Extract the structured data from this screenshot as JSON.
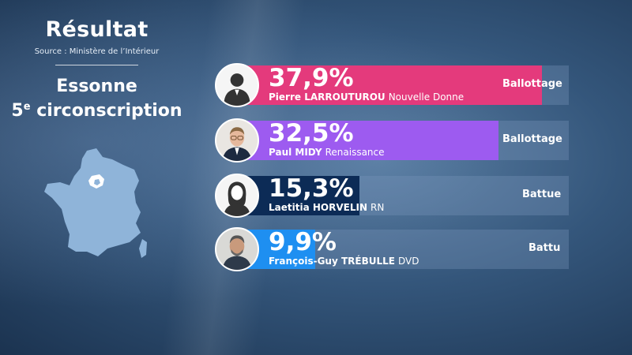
{
  "title": "Résultat",
  "source": "Source : Ministère de l’Intérieur",
  "department": "Essonne",
  "circonscription": {
    "number": "5",
    "suffix": "e",
    "label": "circonscription"
  },
  "colors": {
    "larrouturou": "#e43a7c",
    "midy": "#9d5bf0",
    "horvelin": "#0c2b56",
    "trebulle": "#1e8ff1",
    "map_land": "#8fb4d9",
    "map_highlight": "#ffffff"
  },
  "chart_data": {
    "type": "bar",
    "ylim": [
      0,
      37.9
    ],
    "candidates": [
      {
        "pct_label": "37,9%",
        "value": 37.9,
        "name": "Pierre LARROUTUROU",
        "party": "Nouvelle Donne",
        "status": "Ballottage",
        "color": "#e43a7c",
        "photo": "silhouette-man-icon"
      },
      {
        "pct_label": "32,5%",
        "value": 32.5,
        "name": "Paul MIDY",
        "party": "Renaissance",
        "status": "Ballottage",
        "color": "#9d5bf0",
        "photo": "candidate-photo-icon"
      },
      {
        "pct_label": "15,3%",
        "value": 15.3,
        "name": "Laetitia HORVELIN",
        "party": "RN",
        "status": "Battue",
        "color": "#0c2b56",
        "photo": "silhouette-woman-icon"
      },
      {
        "pct_label": "9,9%",
        "value": 9.9,
        "name": "François-Guy TRÉBULLE",
        "party": "DVD",
        "status": "Battu",
        "color": "#1e8ff1",
        "photo": "candidate-photo-icon"
      }
    ]
  }
}
